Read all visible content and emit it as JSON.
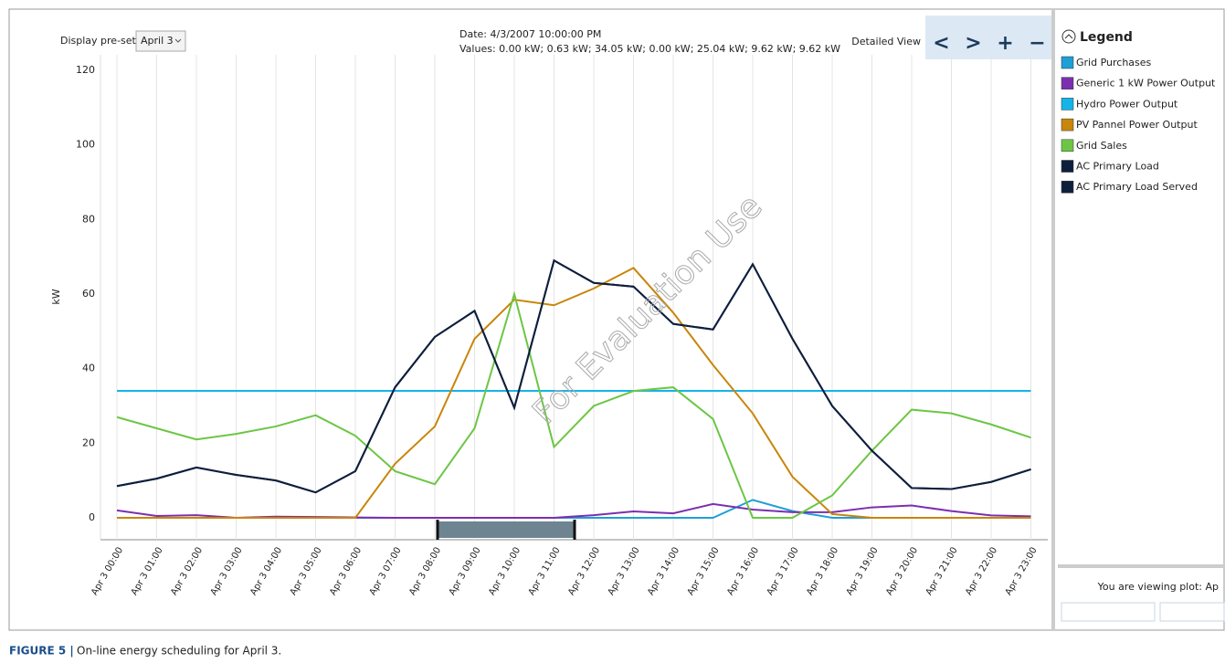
{
  "controls": {
    "preset_label": "Display pre-set plot:",
    "preset_value": "April 3",
    "date": "Date:  4/3/2007 10:00:00 PM",
    "values": "Values:  0.00 kW; 0.63 kW; 34.05 kW; 0.00 kW; 25.04 kW; 9.62 kW; 9.62 kW",
    "detailed_view": "Detailed View",
    "buttons": [
      "<",
      ">",
      "+",
      "−"
    ],
    "legend_header": "Legend",
    "viewing": "You are viewing plot:  Ap"
  },
  "caption": {
    "label": "FIGURE 5 |",
    "text": "On-line energy scheduling for April 3."
  },
  "chart_data": {
    "type": "line",
    "ylabel": "kW",
    "watermark": "For Evaluation Use",
    "categories": [
      "Apr 3 00:00",
      "Apr 3 01:00",
      "Apr 3 02:00",
      "Apr 3 03:00",
      "Apr 3 04:00",
      "Apr 3 05:00",
      "Apr 3 06:00",
      "Apr 3 07:00",
      "Apr 3 08:00",
      "Apr 3 09:00",
      "Apr 3 10:00",
      "Apr 3 11:00",
      "Apr 3 12:00",
      "Apr 3 13:00",
      "Apr 3 14:00",
      "Apr 3 15:00",
      "Apr 3 16:00",
      "Apr 3 17:00",
      "Apr 3 18:00",
      "Apr 3 19:00",
      "Apr 3 20:00",
      "Apr 3 21:00",
      "Apr 3 22:00",
      "Apr 3 23:00"
    ],
    "ylim": [
      0,
      120
    ],
    "yticks": [
      0,
      20,
      40,
      60,
      80,
      100,
      120
    ],
    "grid": "x",
    "series": [
      {
        "name": "Grid Purchases",
        "color": "#1e9fd6",
        "values": [
          0,
          0,
          0,
          0,
          0,
          0,
          0,
          0,
          0,
          0,
          0,
          0,
          0,
          0,
          0,
          0,
          4.8,
          1.8,
          0,
          0,
          0,
          0,
          0,
          0
        ]
      },
      {
        "name": "Generic 1 kW Power Output",
        "color": "#7b2fb0",
        "values": [
          2,
          0.5,
          0.7,
          0,
          0.3,
          0.2,
          0.1,
          0,
          0,
          0,
          0,
          0,
          0.7,
          1.7,
          1.2,
          3.7,
          2.2,
          1.5,
          1.5,
          2.8,
          3.3,
          1.8,
          0.63,
          0.4
        ]
      },
      {
        "name": "Hydro Power Output",
        "color": "#14b4e8",
        "values": [
          34.05,
          34.05,
          34.05,
          34.05,
          34.05,
          34.05,
          34.05,
          34.05,
          34.05,
          34.05,
          34.05,
          34.05,
          34.05,
          34.05,
          34.05,
          34.05,
          34.05,
          34.05,
          34.05,
          34.05,
          34.05,
          34.05,
          34.05,
          34.05
        ]
      },
      {
        "name": "PV Pannel Power Output",
        "color": "#c8860a",
        "values": [
          0,
          0,
          0,
          0,
          0,
          0,
          0,
          14.5,
          24.5,
          48,
          58.5,
          57,
          61.5,
          67,
          55,
          41,
          28,
          11,
          1,
          0,
          0,
          0,
          0,
          0
        ]
      },
      {
        "name": "Grid Sales",
        "color": "#6cc644",
        "values": [
          27,
          24,
          21,
          22.5,
          24.5,
          27.5,
          22,
          12.5,
          9,
          24,
          60,
          19,
          30,
          34,
          35,
          26.5,
          0,
          0,
          6,
          18,
          29,
          28,
          25.04,
          21.5
        ]
      },
      {
        "name": "AC Primary Load",
        "color": "#0e1f3d",
        "values": [
          8.5,
          10.5,
          13.5,
          11.5,
          10,
          6.8,
          12.5,
          35,
          48.5,
          55.5,
          29.5,
          69,
          63,
          62,
          52,
          50.5,
          68,
          48,
          30,
          18,
          8,
          7.7,
          9.62,
          13
        ]
      },
      {
        "name": "AC Primary Load Served",
        "color": "#0e1f3d",
        "values": [
          8.5,
          10.5,
          13.5,
          11.5,
          10,
          6.8,
          12.5,
          35,
          48.5,
          55.5,
          29.5,
          69,
          63,
          62,
          52,
          50.5,
          68,
          48,
          30,
          18,
          8,
          7.7,
          9.62,
          13
        ]
      }
    ]
  }
}
